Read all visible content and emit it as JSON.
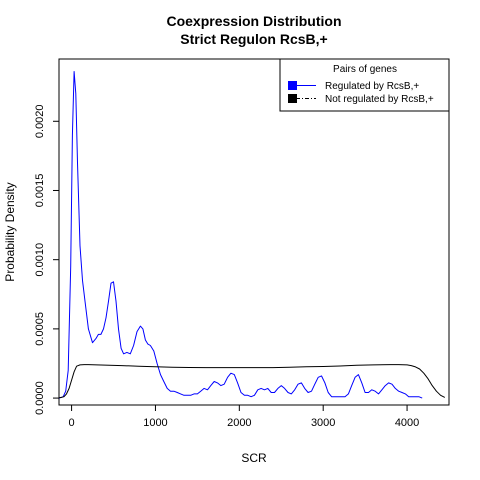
{
  "chart_data": {
    "type": "line",
    "title": "Coexpression Distribution",
    "subtitle": "Strict Regulon RcsB,+",
    "xlabel": "SCR",
    "ylabel": "Probability Density",
    "xlim": [
      -150,
      4500
    ],
    "ylim": [
      -5e-05,
      0.00245
    ],
    "x_ticks": [
      0,
      1000,
      2000,
      3000,
      4000
    ],
    "x_tick_labels": [
      "0",
      "1000",
      "2000",
      "3000",
      "4000"
    ],
    "y_ticks": [
      0,
      0.0005,
      0.001,
      0.0015,
      0.002
    ],
    "y_tick_labels": [
      "0.0000",
      "0.0005",
      "0.0010",
      "0.0015",
      "0.0020"
    ],
    "grid": false,
    "legend": {
      "title": "Pairs of genes",
      "position": "top-right",
      "entries": [
        {
          "label": "Regulated by  RcsB,+",
          "color": "#0000ff",
          "line": "solid"
        },
        {
          "label": "Not regulated by  RcsB,+",
          "color": "#000000",
          "line": "dashdot"
        }
      ]
    },
    "series": [
      {
        "name": "Regulated by  RcsB,+",
        "color": "#0000ff",
        "x": [
          -150,
          -100,
          -70,
          -40,
          -10,
          10,
          30,
          50,
          70,
          100,
          130,
          160,
          200,
          250,
          290,
          320,
          350,
          380,
          410,
          440,
          470,
          500,
          530,
          560,
          590,
          620,
          660,
          700,
          740,
          780,
          820,
          850,
          880,
          910,
          940,
          980,
          1020,
          1060,
          1100,
          1140,
          1180,
          1220,
          1260,
          1300,
          1340,
          1380,
          1420,
          1460,
          1500,
          1540,
          1580,
          1620,
          1660,
          1700,
          1740,
          1780,
          1820,
          1860,
          1900,
          1940,
          1980,
          2020,
          2060,
          2100,
          2140,
          2180,
          2220,
          2260,
          2300,
          2340,
          2380,
          2420,
          2460,
          2500,
          2540,
          2580,
          2620,
          2660,
          2700,
          2740,
          2780,
          2820,
          2860,
          2900,
          2940,
          2980,
          3020,
          3060,
          3100,
          3140,
          3180,
          3220,
          3260,
          3300,
          3340,
          3380,
          3420,
          3460,
          3500,
          3540,
          3580,
          3620,
          3660,
          3700,
          3740,
          3780,
          3820,
          3860,
          3900,
          3940,
          3980,
          4020,
          4060,
          4100,
          4140,
          4180
        ],
        "y": [
          0,
          1e-05,
          5e-05,
          0.0002,
          0.00095,
          0.0019,
          0.00236,
          0.0022,
          0.0017,
          0.0011,
          0.00085,
          0.0007,
          0.0005,
          0.0004,
          0.00043,
          0.00046,
          0.00046,
          0.0005,
          0.00058,
          0.0007,
          0.00083,
          0.00084,
          0.0007,
          0.0005,
          0.00036,
          0.00032,
          0.00033,
          0.00032,
          0.00038,
          0.00048,
          0.00052,
          0.0005,
          0.00042,
          0.00039,
          0.00038,
          0.00034,
          0.00025,
          0.00017,
          0.00012,
          7e-05,
          5e-05,
          5e-05,
          4e-05,
          3e-05,
          2e-05,
          2e-05,
          2e-05,
          3e-05,
          3e-05,
          5e-05,
          7e-05,
          6e-05,
          9e-05,
          0.00012,
          0.00011,
          9e-05,
          0.0001,
          0.00015,
          0.00018,
          0.00017,
          0.00011,
          4e-05,
          2e-05,
          2e-05,
          1e-05,
          2e-05,
          6e-05,
          7e-05,
          6e-05,
          7e-05,
          4e-05,
          4e-05,
          7e-05,
          9e-05,
          7e-05,
          4e-05,
          3e-05,
          6e-05,
          0.0001,
          0.00011,
          7e-05,
          4e-05,
          5e-05,
          0.0001,
          0.00015,
          0.00016,
          0.00011,
          4e-05,
          1e-05,
          1e-05,
          1e-05,
          1e-05,
          1e-05,
          3e-05,
          9e-05,
          0.00015,
          0.00017,
          0.00011,
          4e-05,
          4e-05,
          6e-05,
          5e-05,
          3e-05,
          6e-05,
          9e-05,
          0.00011,
          0.0001,
          7e-05,
          5e-05,
          4e-05,
          3e-05,
          1e-05,
          1e-05,
          1e-05,
          1e-05,
          0.0
        ]
      },
      {
        "name": "Not regulated by  RcsB,+",
        "color": "#000000",
        "x": [
          -150,
          -120,
          -90,
          -60,
          -30,
          0,
          30,
          60,
          100,
          150,
          200,
          300,
          400,
          500,
          600,
          800,
          1000,
          1200,
          1400,
          1600,
          1800,
          2000,
          2200,
          2400,
          2600,
          2800,
          3000,
          3200,
          3400,
          3600,
          3800,
          3900,
          4000,
          4050,
          4100,
          4150,
          4200,
          4250,
          4300,
          4350,
          4400,
          4450
        ],
        "y": [
          2e-06,
          5e-06,
          1e-05,
          3e-05,
          7e-05,
          0.00013,
          0.00019,
          0.00023,
          0.00024,
          0.000242,
          0.000242,
          0.00024,
          0.000238,
          0.000236,
          0.000235,
          0.00023,
          0.000227,
          0.000223,
          0.000221,
          0.00022,
          0.00022,
          0.00022,
          0.00022,
          0.00022,
          0.000223,
          0.000226,
          0.000228,
          0.000232,
          0.000237,
          0.00024,
          0.000242,
          0.000242,
          0.00024,
          0.000235,
          0.000225,
          0.00021,
          0.00018,
          0.00014,
          9e-05,
          5e-05,
          2e-05,
          5e-06
        ]
      }
    ]
  }
}
